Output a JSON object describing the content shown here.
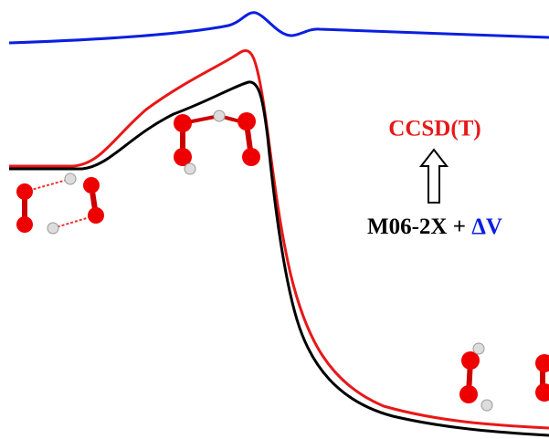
{
  "labels": {
    "top": "CCSD(T)",
    "method": "M06-2X",
    "plus": "+",
    "correction": "ΔV"
  }
}
